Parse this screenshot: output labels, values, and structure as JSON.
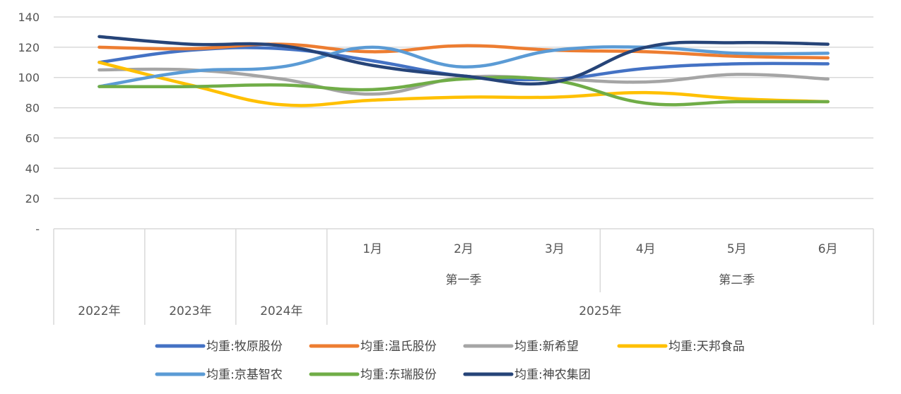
{
  "chart_data": {
    "type": "line",
    "y_ticks": [
      "-",
      "20",
      "40",
      "60",
      "80",
      "100",
      "120",
      "140"
    ],
    "ylim": [
      0,
      140
    ],
    "y_step": 20,
    "grid": "horizontal",
    "legend_position": "bottom",
    "x_levels": {
      "months": [
        "",
        "",
        "",
        "1月",
        "2月",
        "3月",
        "4月",
        "5月",
        "6月"
      ],
      "quarters": [
        {
          "label": "第一季",
          "span": [
            3,
            5
          ]
        },
        {
          "label": "第二季",
          "span": [
            6,
            8
          ]
        }
      ],
      "years": [
        {
          "label": "2022年",
          "span": [
            0,
            0
          ]
        },
        {
          "label": "2023年",
          "span": [
            1,
            1
          ]
        },
        {
          "label": "2024年",
          "span": [
            2,
            2
          ]
        },
        {
          "label": "2025年",
          "span": [
            3,
            8
          ]
        }
      ]
    },
    "series": [
      {
        "name": "均重:牧原股份",
        "color": "#4472C4",
        "values": [
          110,
          118,
          119,
          111,
          101,
          99,
          106,
          109,
          109
        ]
      },
      {
        "name": "均重:温氏股份",
        "color": "#ED7D31",
        "values": [
          120,
          119,
          122,
          117,
          121,
          118,
          117,
          114,
          113
        ]
      },
      {
        "name": "均重:新希望",
        "color": "#A5A5A5",
        "values": [
          105,
          105,
          99,
          89,
          100,
          99,
          97,
          102,
          99
        ]
      },
      {
        "name": "均重:天邦食品",
        "color": "#FFC000",
        "values": [
          110,
          95,
          82,
          85,
          87,
          87,
          90,
          86,
          84
        ]
      },
      {
        "name": "均重:京基智农",
        "color": "#5B9BD5",
        "values": [
          94,
          104,
          107,
          120,
          107,
          118,
          120,
          116,
          116
        ]
      },
      {
        "name": "均重:东瑞股份",
        "color": "#70AD47",
        "values": [
          94,
          94,
          95,
          92,
          99,
          98,
          83,
          84,
          84
        ]
      },
      {
        "name": "均重:神农集团",
        "color": "#264478",
        "values": [
          127,
          122,
          121,
          108,
          101,
          97,
          120,
          123,
          122
        ]
      }
    ]
  }
}
